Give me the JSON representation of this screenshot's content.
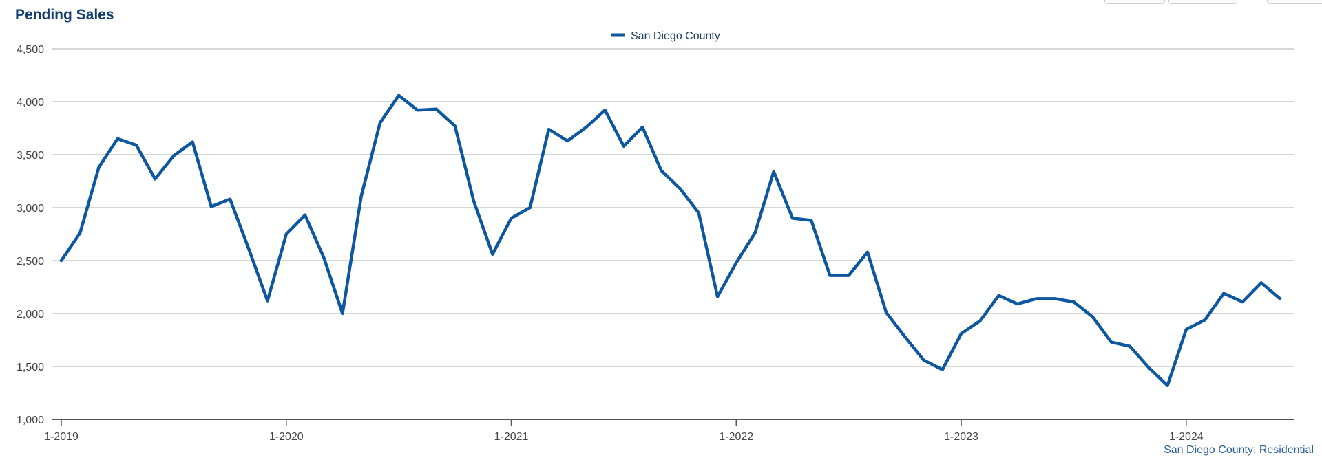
{
  "header": {
    "title": "Pending Sales"
  },
  "chart_data": {
    "type": "line",
    "title": "Pending Sales",
    "xlabel": "",
    "ylabel": "",
    "ylim": [
      1000,
      4500
    ],
    "yticks": [
      1000,
      1500,
      2000,
      2500,
      3000,
      3500,
      4000,
      4500
    ],
    "ytick_labels": [
      "1,000",
      "1,500",
      "2,000",
      "2,500",
      "3,000",
      "3,500",
      "4,000",
      "4,500"
    ],
    "xticks": [
      "1-2019",
      "1-2020",
      "1-2021",
      "1-2022",
      "1-2023",
      "1-2024"
    ],
    "grid": "horizontal",
    "legend": "top-center",
    "colors": {
      "series": "#0d57a0",
      "grid": "#c8c8c8",
      "axis": "#555555"
    },
    "x": [
      "1-2019",
      "2-2019",
      "3-2019",
      "4-2019",
      "5-2019",
      "6-2019",
      "7-2019",
      "8-2019",
      "9-2019",
      "10-2019",
      "11-2019",
      "12-2019",
      "1-2020",
      "2-2020",
      "3-2020",
      "4-2020",
      "5-2020",
      "6-2020",
      "7-2020",
      "8-2020",
      "9-2020",
      "10-2020",
      "11-2020",
      "12-2020",
      "1-2021",
      "2-2021",
      "3-2021",
      "4-2021",
      "5-2021",
      "6-2021",
      "7-2021",
      "8-2021",
      "9-2021",
      "10-2021",
      "11-2021",
      "12-2021",
      "1-2022",
      "2-2022",
      "3-2022",
      "4-2022",
      "5-2022",
      "6-2022",
      "7-2022",
      "8-2022",
      "9-2022",
      "10-2022",
      "11-2022",
      "12-2022",
      "1-2023",
      "2-2023",
      "3-2023",
      "4-2023",
      "5-2023",
      "6-2023",
      "7-2023",
      "8-2023",
      "9-2023",
      "10-2023",
      "11-2023",
      "12-2023",
      "1-2024",
      "2-2024",
      "3-2024",
      "4-2024",
      "5-2024",
      "6-2024"
    ],
    "series": [
      {
        "name": "San Diego County",
        "values": [
          2500,
          2760,
          3380,
          3650,
          3590,
          3270,
          3490,
          3620,
          3010,
          3080,
          2610,
          2120,
          2750,
          2930,
          2530,
          2000,
          3110,
          3800,
          4060,
          3920,
          3930,
          3770,
          3060,
          2560,
          2900,
          3000,
          3740,
          3630,
          3760,
          3920,
          3580,
          3760,
          3350,
          3180,
          2950,
          2160,
          2480,
          2760,
          3340,
          2900,
          2880,
          2360,
          2360,
          2580,
          2010,
          1780,
          1560,
          1470,
          1810,
          1930,
          2170,
          2090,
          2140,
          2140,
          2110,
          1970,
          1730,
          1690,
          1490,
          1320,
          1850,
          1940,
          2190,
          2110,
          2290,
          2140
        ]
      }
    ],
    "credits": "San Diego County: Residential"
  }
}
